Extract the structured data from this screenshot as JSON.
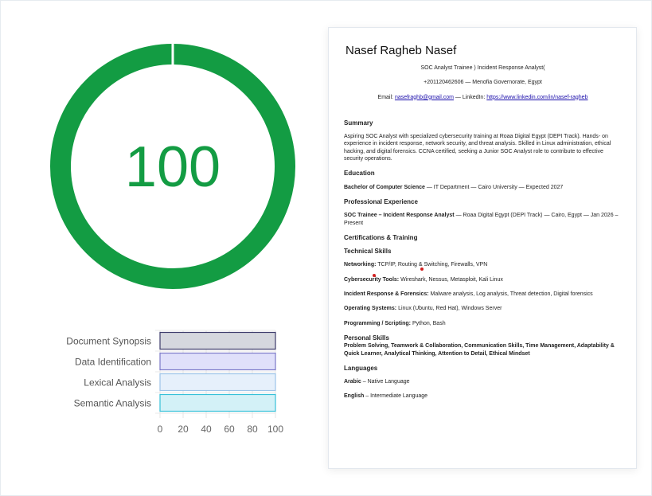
{
  "score": {
    "value": "100",
    "percent": 100,
    "color": "#139c43"
  },
  "chart_data": {
    "type": "bar",
    "orientation": "horizontal",
    "categories": [
      "Document Synopsis",
      "Data Identification",
      "Lexical Analysis",
      "Semantic Analysis"
    ],
    "values": [
      100,
      100,
      100,
      100
    ],
    "xlim": [
      0,
      100
    ],
    "xticks": [
      "0",
      "20",
      "40",
      "60",
      "80",
      "100"
    ],
    "grid": true,
    "colors": [
      {
        "fill": "#d5d7de",
        "stroke": "#3c3b6b"
      },
      {
        "fill": "#e0e0fa",
        "stroke": "#7b78c8"
      },
      {
        "fill": "#e6f0fb",
        "stroke": "#9cc3e8"
      },
      {
        "fill": "#d3f1f7",
        "stroke": "#37c1d8"
      }
    ]
  },
  "resume": {
    "name": "Nasef Ragheb Nasef",
    "title": "SOC Analyst Trainee ) Incident Response Analyst(",
    "contact": "+201120462606 — Menofia Governorate, Egypt",
    "email_label": "Email: ",
    "email": "nasefraghb@gmail.com",
    "linkedin_label": " — LinkedIn: ",
    "linkedin": "https://www.linkedin.com/in/nasef-ragheb",
    "summary_h": "Summary",
    "summary": "Aspiring SOC Analyst with specialized cybersecurity training at Roaa Digital Egypt (DEPI Track). Hands- on experience in incident response, network security, and threat analysis. Skilled in Linux administration, ethical hacking, and digital forensics. CCNA certified, seeking a Junior SOC Analyst role to contribute to effective security operations.",
    "education_h": "Education",
    "edu_b": "Bachelor of Computer Science",
    "edu": " — IT Department — Cairo University — Expected 2027",
    "exp_h": "Professional Experience",
    "exp_b": "SOC Trainee – Incident Response Analyst",
    "exp": " — Roaa Digital Egypt (DEPI Track) — Cairo, Egypt — Jan 2026 – Present",
    "cert_h": "Certifications & Training",
    "tech_h": "Technical Skills",
    "skills": [
      {
        "k": "Networking:",
        "v": " TCP/IP, Routing & Switching, Firewalls, VPN"
      },
      {
        "k": "Cybersecurity Tools:",
        "v": " Wireshark, Nessus, Metasploit, Kali Linux"
      },
      {
        "k": "Incident Response & Forensics:",
        "v": " Malware analysis, Log analysis, Threat detection, Digital forensics"
      },
      {
        "k": "Operating Systems:",
        "v": " Linux (Ubuntu, Red Hat), Windows Server"
      },
      {
        "k": "Programming / Scripting:",
        "v": " Python, Bash"
      }
    ],
    "personal_h": "Personal Skills",
    "personal": "Problem Solving, Teamwork & Collaboration, Communication Skills, Time Management, Adaptability & Quick Learner, Analytical Thinking, Attention to Detail, Ethical Mindset",
    "lang_h": "Languages",
    "langs": [
      {
        "k": "Arabic",
        "v": " – Native Language"
      },
      {
        "k": "English",
        "v": " – Intermediate Language"
      }
    ]
  }
}
